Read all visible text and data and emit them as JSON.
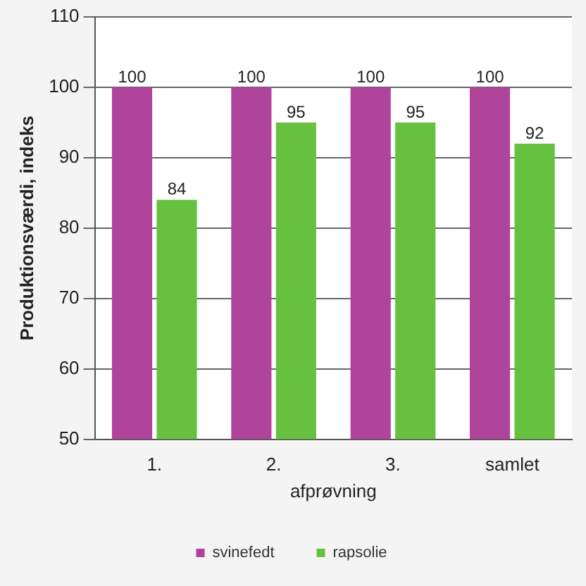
{
  "chart_data": {
    "type": "bar",
    "xlabel": "afprøvning",
    "ylabel": "Produktionsværdi, indeks",
    "categories": [
      "1.",
      "2.",
      "3.",
      "samlet"
    ],
    "series": [
      {
        "name": "svinefedt",
        "color": "#b0449a",
        "values": [
          100,
          100,
          100,
          100
        ]
      },
      {
        "name": "rapsolie",
        "color": "#66c23e",
        "values": [
          84,
          95,
          95,
          92
        ]
      }
    ],
    "ylim": [
      50,
      110
    ],
    "yticks": [
      50,
      60,
      70,
      80,
      90,
      100,
      110
    ],
    "grid": "y",
    "legend": "bottom",
    "data_labels": true
  }
}
